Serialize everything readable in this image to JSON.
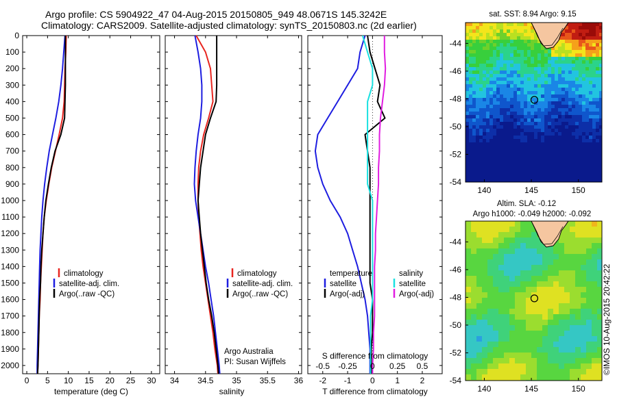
{
  "header": {
    "line1": "Argo profile: CS 5904922_47 04-Aug-2015 20150805_949 48.0671S 145.3242E",
    "line2": "Climatology: CARS2009. Satellite-adjusted climatology: synTS_20150803.nc (2d earlier)"
  },
  "watermark": "©IMOS 10-Aug-2015 20:42:22",
  "colors": {
    "climatology": "#e8251f",
    "satellite": "#1d1de0",
    "argo": "#000000",
    "sat_salinity": "#19e0e0",
    "argo_salinity": "#e01ce0",
    "land": "#f5c6a0"
  },
  "chart_data": [
    {
      "type": "line",
      "xlabel": "temperature (deg C)",
      "ylabel": "",
      "xlim": [
        -1,
        32
      ],
      "ylim": [
        2050,
        0
      ],
      "xticks": [
        "0",
        "5",
        "10",
        "15",
        "20",
        "25",
        "30"
      ],
      "yticks": [
        "0",
        "100",
        "200",
        "300",
        "400",
        "500",
        "600",
        "700",
        "800",
        "900",
        "1000",
        "1100",
        "1200",
        "1300",
        "1400",
        "1500",
        "1600",
        "1700",
        "1800",
        "1900",
        "2000"
      ],
      "depth": [
        0,
        100,
        200,
        300,
        400,
        500,
        600,
        700,
        800,
        900,
        1000,
        1100,
        1200,
        1300,
        1400,
        1500,
        1600,
        1700,
        1800,
        1900,
        2000,
        2050
      ],
      "series": [
        {
          "name": "climatology",
          "values": [
            9.5,
            9.4,
            9.2,
            9.1,
            9.0,
            8.6,
            7.8,
            6.9,
            6.0,
            5.3,
            4.7,
            4.2,
            3.9,
            3.7,
            3.5,
            3.3,
            3.2,
            3.0,
            2.9,
            2.8,
            2.7,
            2.6
          ]
        },
        {
          "name": "satellite-adj. clim.",
          "values": [
            9.2,
            8.9,
            8.6,
            8.2,
            7.7,
            7.0,
            6.2,
            5.4,
            4.8,
            4.3,
            3.9,
            3.6,
            3.4,
            3.2,
            3.1,
            3.0,
            2.9,
            2.8,
            2.7,
            2.6,
            2.5,
            2.5
          ]
        },
        {
          "name": "Argo(..raw -QC)",
          "values": [
            9.3,
            9.3,
            9.3,
            9.3,
            9.2,
            9.1,
            8.2,
            6.8,
            5.9,
            5.2,
            4.6,
            4.2,
            3.9,
            3.6,
            3.4,
            3.3,
            3.1,
            3.0,
            2.9,
            2.8,
            2.7,
            2.6
          ]
        }
      ]
    },
    {
      "type": "line",
      "xlabel": "salinity",
      "xlim": [
        33.85,
        36.05
      ],
      "ylim": [
        2050,
        0
      ],
      "xticks": [
        "34",
        "34.5",
        "35",
        "35.5",
        "36"
      ],
      "depth": [
        0,
        100,
        200,
        300,
        400,
        500,
        600,
        700,
        800,
        900,
        1000,
        1100,
        1200,
        1300,
        1400,
        1500,
        1600,
        1700,
        1800,
        1900,
        2000,
        2050
      ],
      "annotation": [
        "Argo Australia",
        "PI: Susan Wijffels"
      ],
      "series": [
        {
          "name": "climatology",
          "values": [
            34.35,
            34.5,
            34.58,
            34.6,
            34.62,
            34.55,
            34.47,
            34.42,
            34.39,
            34.38,
            34.38,
            34.39,
            34.41,
            34.43,
            34.46,
            34.5,
            34.54,
            34.58,
            34.62,
            34.65,
            34.69,
            34.7
          ]
        },
        {
          "name": "satellite-adj. clim.",
          "values": [
            34.33,
            34.38,
            34.42,
            34.44,
            34.44,
            34.42,
            34.38,
            34.35,
            34.33,
            34.32,
            34.34,
            34.38,
            34.42,
            34.46,
            34.5,
            34.55,
            34.59,
            34.63,
            34.66,
            34.69,
            34.72,
            34.73
          ]
        },
        {
          "name": "Argo(..raw -QC)",
          "values": [
            34.68,
            34.68,
            34.68,
            34.68,
            34.67,
            34.58,
            34.5,
            34.46,
            34.42,
            34.4,
            34.38,
            34.4,
            34.42,
            34.45,
            34.48,
            34.51,
            34.55,
            34.6,
            34.64,
            34.67,
            34.7,
            34.71
          ]
        }
      ]
    },
    {
      "type": "line",
      "xlabel": "T difference from climatology",
      "xlabel_top": "S difference from climatology",
      "xlim": [
        -2.6,
        2.8
      ],
      "ylim": [
        2050,
        0
      ],
      "xticks": [
        "-2",
        "-1",
        "0",
        "1",
        "2"
      ],
      "xticks_top": [
        "-0.5",
        "-0.25",
        "0",
        "0.25",
        "0.5"
      ],
      "legend_left_title": "temperature",
      "legend_right_title": "salinity",
      "depth": [
        0,
        100,
        200,
        300,
        400,
        500,
        600,
        700,
        800,
        900,
        1000,
        1100,
        1200,
        1300,
        1400,
        1500,
        1600,
        1700,
        1800,
        1900,
        2000,
        2050
      ],
      "series": [
        {
          "name": "satellite",
          "group": "temperature",
          "values": [
            -0.3,
            -0.5,
            -0.6,
            -1.0,
            -1.4,
            -1.8,
            -2.2,
            -2.3,
            -2.2,
            -2.0,
            -1.7,
            -1.3,
            -1.0,
            -0.8,
            -0.6,
            -0.45,
            -0.3,
            -0.2,
            -0.15,
            -0.1,
            -0.1,
            -0.1
          ]
        },
        {
          "name": "Argo(-adj)",
          "group": "temperature",
          "values": [
            -0.2,
            -0.1,
            0.1,
            0.3,
            0.2,
            0.5,
            -0.3,
            -0.2,
            -0.1,
            -0.1,
            -0.1,
            -0.1,
            -0.1,
            -0.1,
            -0.1,
            -0.1,
            0.0,
            0.0,
            0.0,
            -0.05,
            -0.05,
            -0.05
          ]
        },
        {
          "name": "satellite",
          "group": "salinity",
          "values": [
            -0.1,
            -0.05,
            0.0,
            0.0,
            -0.05,
            -0.05,
            -0.05,
            -0.05,
            -0.05,
            -0.05,
            0.0,
            0.0,
            0.0,
            0.0,
            0.0,
            0.0,
            0.0,
            -0.02,
            -0.02,
            -0.02,
            -0.02,
            -0.02
          ]
        },
        {
          "name": "Argo(-adj)",
          "group": "salinity",
          "values": [
            0.12,
            0.12,
            0.13,
            0.12,
            0.1,
            0.08,
            0.07,
            0.07,
            0.06,
            0.06,
            0.05,
            0.04,
            0.03,
            0.03,
            0.02,
            0.02,
            0.02,
            0.02,
            0.01,
            0.01,
            0.0,
            0.0
          ]
        }
      ]
    },
    {
      "type": "heatmap",
      "title": "sat. SST: 8.94  Argo: 9.15",
      "xlim": [
        138,
        152.5
      ],
      "ylim": [
        -54,
        -42.5
      ],
      "xticks": [
        "140",
        "145",
        "150"
      ],
      "yticks": [
        "-44",
        "-46",
        "-48",
        "-50",
        "-52",
        "-54"
      ],
      "marker": {
        "lon": 145.32,
        "lat": -48.07
      }
    },
    {
      "type": "heatmap",
      "title": "Altim. SLA: -0.12",
      "subtitle": "Argo h1000: -0.049 h2000: -0.092",
      "xlim": [
        138,
        152.5
      ],
      "ylim": [
        -54,
        -42.5
      ],
      "xticks": [
        "140",
        "145",
        "150"
      ],
      "yticks": [
        "-44",
        "-46",
        "-48",
        "-50",
        "-52",
        "-54"
      ],
      "marker": {
        "lon": 145.32,
        "lat": -48.07
      }
    }
  ]
}
